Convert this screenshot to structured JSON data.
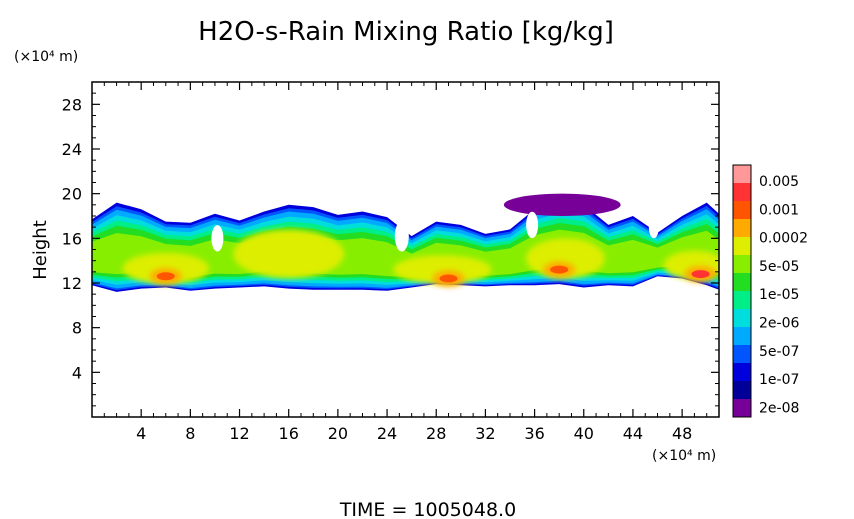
{
  "chart_data": {
    "type": "heatmap",
    "title": "H2O-s-Rain Mixing Ratio [kg/kg]",
    "ylabel": "Height",
    "x_unit_label": "(×10⁴ m)",
    "y_unit_label": "(×10⁴ m)",
    "xlim": [
      0,
      51
    ],
    "ylim": [
      0,
      30
    ],
    "x_ticks": [
      4,
      8,
      12,
      16,
      20,
      24,
      28,
      32,
      36,
      40,
      44,
      48
    ],
    "y_ticks": [
      4,
      8,
      12,
      16,
      20,
      24,
      28
    ],
    "colorbar": {
      "labels": [
        "0.005",
        "0.001",
        "0.0002",
        "5e-05",
        "1e-05",
        "2e-06",
        "5e-07",
        "1e-07",
        "2e-08"
      ],
      "colors": [
        "#ff9999",
        "#ff3333",
        "#ff5500",
        "#ffaa00",
        "#ddee00",
        "#88ee00",
        "#22dd22",
        "#00ee88",
        "#00dddd",
        "#00aaff",
        "#0055ff",
        "#0000dd",
        "#000099",
        "#770099"
      ]
    },
    "footer": "TIME = 1005048.0",
    "cloud_layer": {
      "x": [
        0,
        2,
        4,
        6,
        8,
        10,
        12,
        14,
        16,
        18,
        20,
        22,
        24,
        26,
        28,
        30,
        32,
        34,
        36,
        38,
        40,
        42,
        44,
        46,
        48,
        50,
        51
      ],
      "base": [
        11.8,
        11.2,
        11.5,
        11.6,
        11.3,
        11.5,
        11.6,
        11.7,
        11.5,
        11.4,
        11.4,
        11.4,
        11.3,
        11.6,
        11.9,
        11.8,
        11.7,
        11.8,
        11.8,
        11.9,
        11.6,
        11.8,
        11.7,
        12.6,
        12.4,
        11.8,
        11.4
      ],
      "top": [
        17.7,
        19.2,
        18.6,
        17.5,
        17.4,
        18.2,
        17.6,
        18.4,
        19.0,
        18.8,
        18.1,
        18.4,
        17.9,
        16.2,
        17.5,
        17.2,
        16.4,
        16.8,
        18.6,
        19.3,
        19.0,
        17.2,
        18.0,
        16.5,
        18.0,
        19.2,
        18.2
      ]
    },
    "hotspots": [
      {
        "x": 6.0,
        "y": 12.6,
        "level": "0.0002"
      },
      {
        "x": 29.0,
        "y": 12.4,
        "level": "0.0002"
      },
      {
        "x": 38.0,
        "y": 13.2,
        "level": "0.0002"
      },
      {
        "x": 49.5,
        "y": 12.8,
        "level": "0.001"
      }
    ],
    "purple_region": {
      "x": [
        33.5,
        43.0
      ],
      "y": [
        18.0,
        20.0
      ]
    }
  }
}
